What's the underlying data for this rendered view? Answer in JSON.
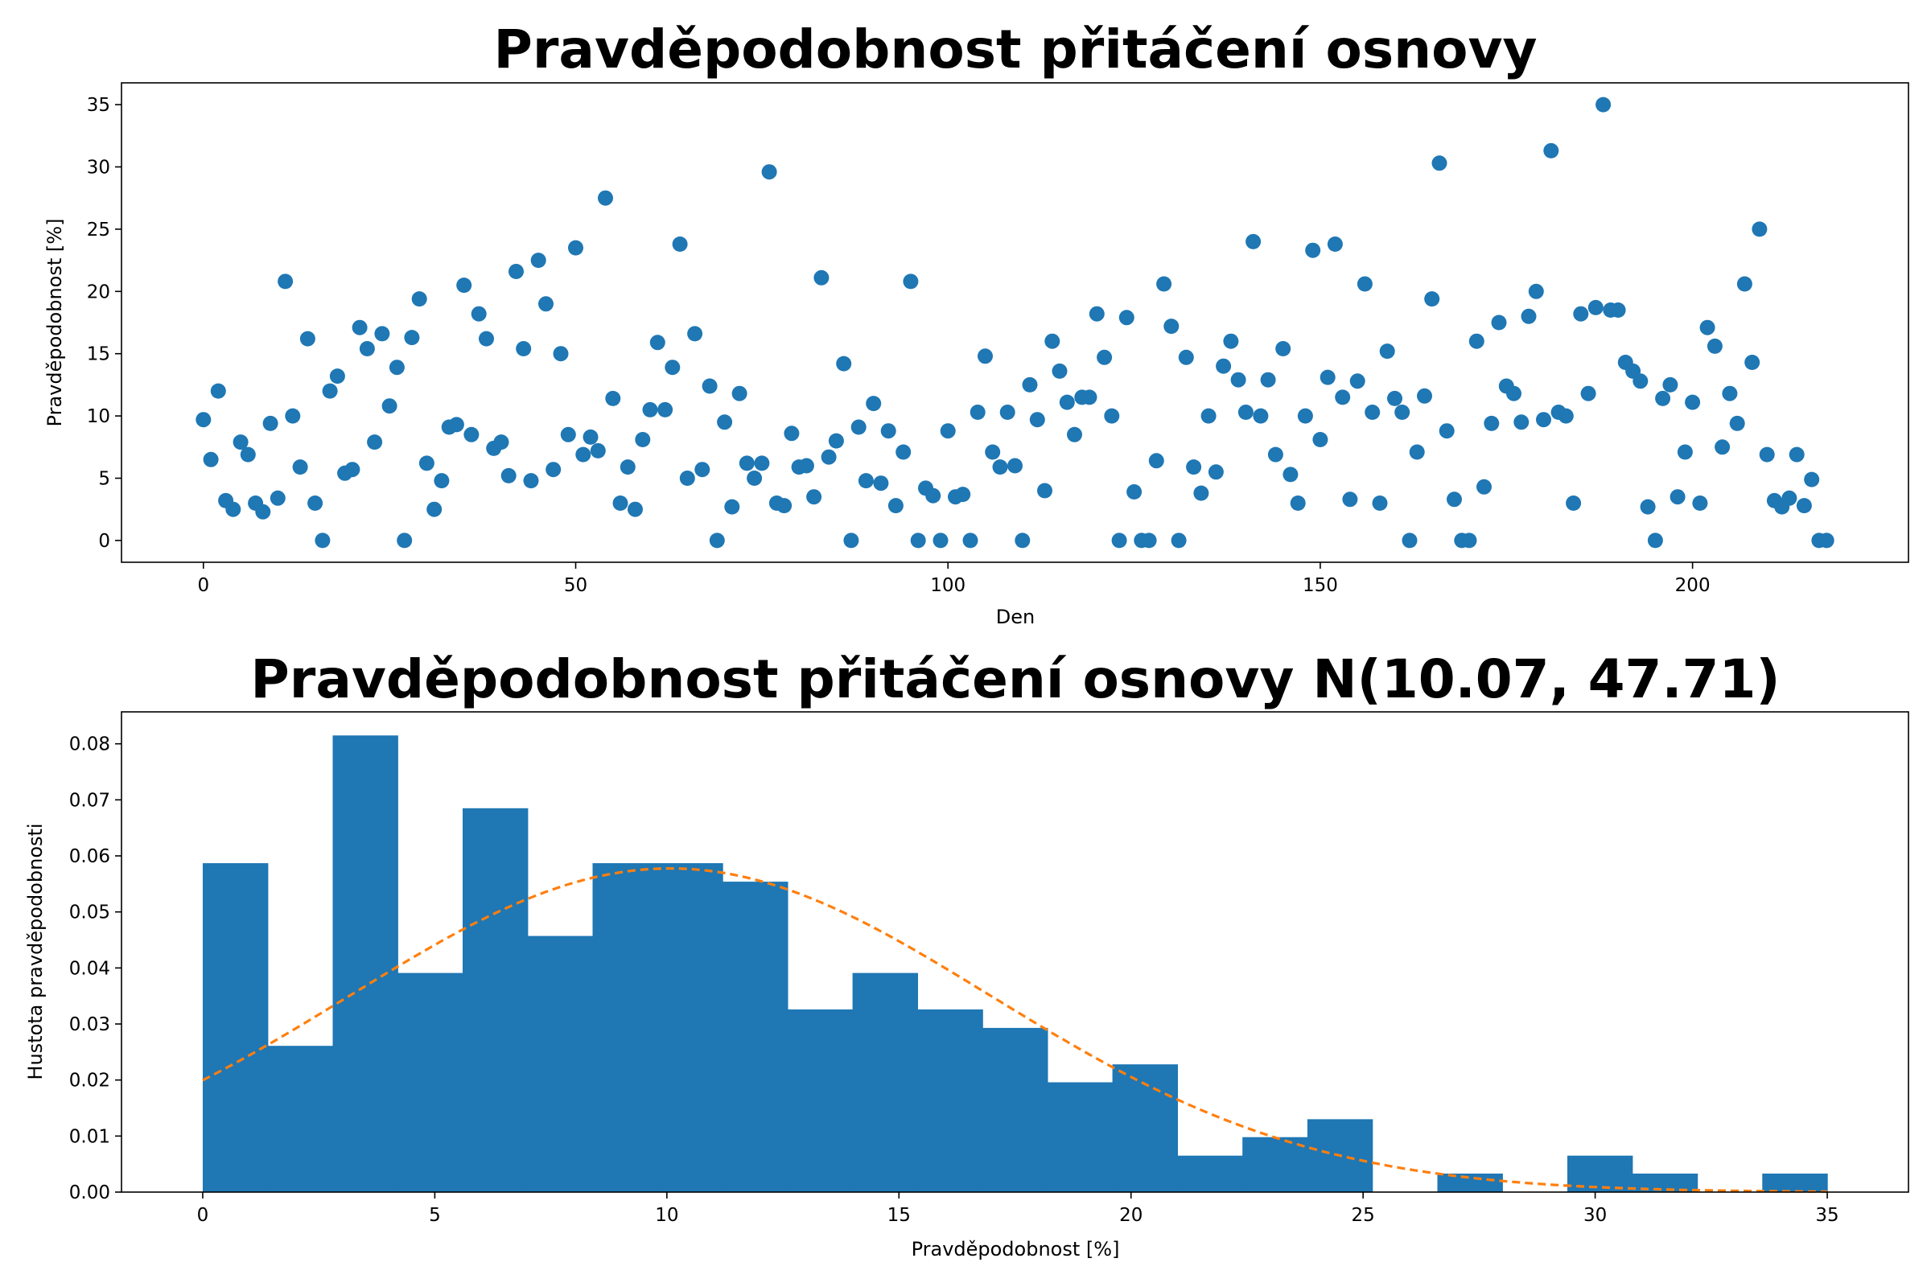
{
  "chart_data": [
    {
      "type": "scatter",
      "title": "Pravděpodobnost přitáčení osnovy",
      "xlabel": "Den",
      "ylabel": "Pravděpodobnost [%]",
      "xlim": [
        -11,
        229
      ],
      "ylim": [
        -1.75,
        36.75
      ],
      "xticks": [
        0,
        50,
        100,
        150,
        200
      ],
      "yticks": [
        0,
        5,
        10,
        15,
        20,
        25,
        30,
        35
      ],
      "grid": false,
      "color": "#1f77b4",
      "x": [
        0,
        1,
        2,
        3,
        4,
        5,
        6,
        7,
        8,
        9,
        10,
        11,
        12,
        13,
        14,
        15,
        16,
        17,
        18,
        19,
        20,
        21,
        22,
        23,
        24,
        25,
        26,
        27,
        28,
        29,
        30,
        31,
        32,
        33,
        34,
        35,
        36,
        37,
        38,
        39,
        40,
        41,
        42,
        43,
        44,
        45,
        46,
        47,
        48,
        49,
        50,
        51,
        52,
        53,
        54,
        55,
        56,
        57,
        58,
        59,
        60,
        61,
        62,
        63,
        64,
        65,
        66,
        67,
        68,
        69,
        70,
        71,
        72,
        73,
        74,
        75,
        76,
        77,
        78,
        79,
        80,
        81,
        82,
        83,
        84,
        85,
        86,
        87,
        88,
        89,
        90,
        91,
        92,
        93,
        94,
        95,
        96,
        97,
        98,
        99,
        100,
        101,
        102,
        103,
        104,
        105,
        106,
        107,
        108,
        109,
        110,
        111,
        112,
        113,
        114,
        115,
        116,
        117,
        118,
        119,
        120,
        121,
        122,
        123,
        124,
        125,
        126,
        127,
        128,
        129,
        130,
        131,
        132,
        133,
        134,
        135,
        136,
        137,
        138,
        139,
        140,
        141,
        142,
        143,
        144,
        145,
        146,
        147,
        148,
        149,
        150,
        151,
        152,
        153,
        154,
        155,
        156,
        157,
        158,
        159,
        160,
        161,
        162,
        163,
        164,
        165,
        166,
        167,
        168,
        169,
        170,
        171,
        172,
        173,
        174,
        175,
        176,
        177,
        178,
        179,
        180,
        181,
        182,
        183,
        184,
        185,
        186,
        187,
        188,
        189,
        190,
        191,
        192,
        193,
        194,
        195,
        196,
        197,
        198,
        199,
        200,
        201,
        202,
        203,
        204,
        205,
        206,
        207,
        208,
        209,
        210,
        211,
        212,
        213,
        214,
        215,
        216,
        217,
        218
      ],
      "y": [
        9.7,
        6.5,
        12.0,
        3.2,
        2.5,
        7.9,
        6.9,
        3.0,
        2.3,
        9.4,
        3.4,
        20.8,
        10.0,
        5.9,
        16.2,
        3.0,
        0.0,
        12.0,
        13.2,
        5.4,
        5.7,
        17.1,
        15.4,
        7.9,
        16.6,
        10.8,
        13.9,
        0.0,
        16.3,
        19.4,
        6.2,
        2.5,
        4.8,
        9.1,
        9.3,
        20.5,
        8.5,
        18.2,
        16.2,
        7.4,
        7.9,
        5.2,
        21.6,
        15.4,
        4.8,
        22.5,
        19.0,
        5.7,
        15.0,
        8.5,
        23.5,
        6.9,
        8.3,
        7.2,
        27.5,
        11.4,
        3.0,
        5.9,
        2.5,
        8.1,
        10.5,
        15.9,
        10.5,
        13.9,
        23.8,
        5.0,
        16.6,
        5.7,
        12.4,
        0.0,
        9.5,
        2.7,
        11.8,
        6.2,
        5.0,
        6.2,
        29.6,
        3.0,
        2.8,
        8.6,
        5.9,
        6.0,
        3.5,
        21.1,
        6.7,
        8.0,
        14.2,
        0.0,
        9.1,
        4.8,
        11.0,
        4.6,
        8.8,
        2.8,
        7.1,
        20.8,
        0.0,
        4.2,
        3.6,
        0.0,
        8.8,
        3.5,
        3.7,
        0.0,
        10.3,
        14.8,
        7.1,
        5.9,
        10.3,
        6.0,
        0.0,
        12.5,
        9.7,
        4.0,
        16.0,
        13.6,
        11.1,
        8.5,
        11.5,
        11.5,
        18.2,
        14.7,
        10.0,
        0.0,
        17.9,
        3.9,
        0.0,
        0.0,
        6.4,
        20.6,
        17.2,
        0.0,
        14.7,
        5.9,
        3.8,
        10.0,
        5.5,
        14.0,
        16.0,
        12.9,
        10.3,
        24.0,
        10.0,
        12.9,
        6.9,
        15.4,
        5.3,
        3.0,
        10.0,
        23.3,
        8.1,
        13.1,
        23.8,
        11.5,
        3.3,
        12.8,
        20.6,
        10.3,
        3.0,
        15.2,
        11.4,
        10.3,
        0.0,
        7.1,
        11.6,
        19.4,
        30.3,
        8.8,
        3.3,
        0.0,
        0.0,
        16.0,
        4.3,
        9.4,
        17.5,
        12.4,
        11.8,
        9.5,
        18.0,
        20.0,
        9.7,
        31.3,
        10.3,
        10.0,
        3.0,
        18.2,
        11.8,
        18.7,
        35.0,
        18.5,
        18.5,
        14.3,
        13.6,
        12.8,
        2.7,
        0.0,
        11.4,
        12.5,
        3.5,
        7.1,
        11.1,
        3.0,
        17.1,
        15.6,
        7.5,
        11.8,
        9.4,
        20.6,
        14.3,
        25.0,
        6.9,
        3.2,
        2.7,
        3.4,
        6.9,
        2.8,
        4.9,
        0.0,
        0.0
      ]
    },
    {
      "type": "bar",
      "title": "Pravděpodobnost přitáčení osnovy N(10.07, 47.71)",
      "xlabel": "Pravděpodobnost [%]",
      "ylabel": "Hustota pravděpodobnosti",
      "xlim": [
        -1.75,
        36.75
      ],
      "ylim": [
        0,
        0.0857
      ],
      "xticks": [
        0,
        5,
        10,
        15,
        20,
        25,
        30,
        35
      ],
      "yticks": [
        "0.00",
        "0.01",
        "0.02",
        "0.03",
        "0.04",
        "0.05",
        "0.06",
        "0.07",
        "0.08"
      ],
      "grid": false,
      "bar_color": "#1f77b4",
      "fit_color": "#ff7f0e",
      "fit_mean": 10.07,
      "fit_variance": 47.71,
      "bin_edges": [
        0,
        1.4,
        2.8,
        4.2,
        5.6,
        7.0,
        8.4,
        9.8,
        11.2,
        12.6,
        14.0,
        15.4,
        16.8,
        18.2,
        19.6,
        21.0,
        22.4,
        23.8,
        25.2,
        26.6,
        28.0,
        29.4,
        30.8,
        32.2,
        33.6,
        35.0
      ],
      "density": [
        0.0587,
        0.0261,
        0.0815,
        0.0391,
        0.0685,
        0.0457,
        0.0587,
        0.0587,
        0.0554,
        0.0326,
        0.0391,
        0.0326,
        0.0293,
        0.0196,
        0.0228,
        0.0065,
        0.0098,
        0.013,
        0.0,
        0.0033,
        0.0,
        0.0065,
        0.0033,
        0.0,
        0.0033
      ]
    }
  ]
}
